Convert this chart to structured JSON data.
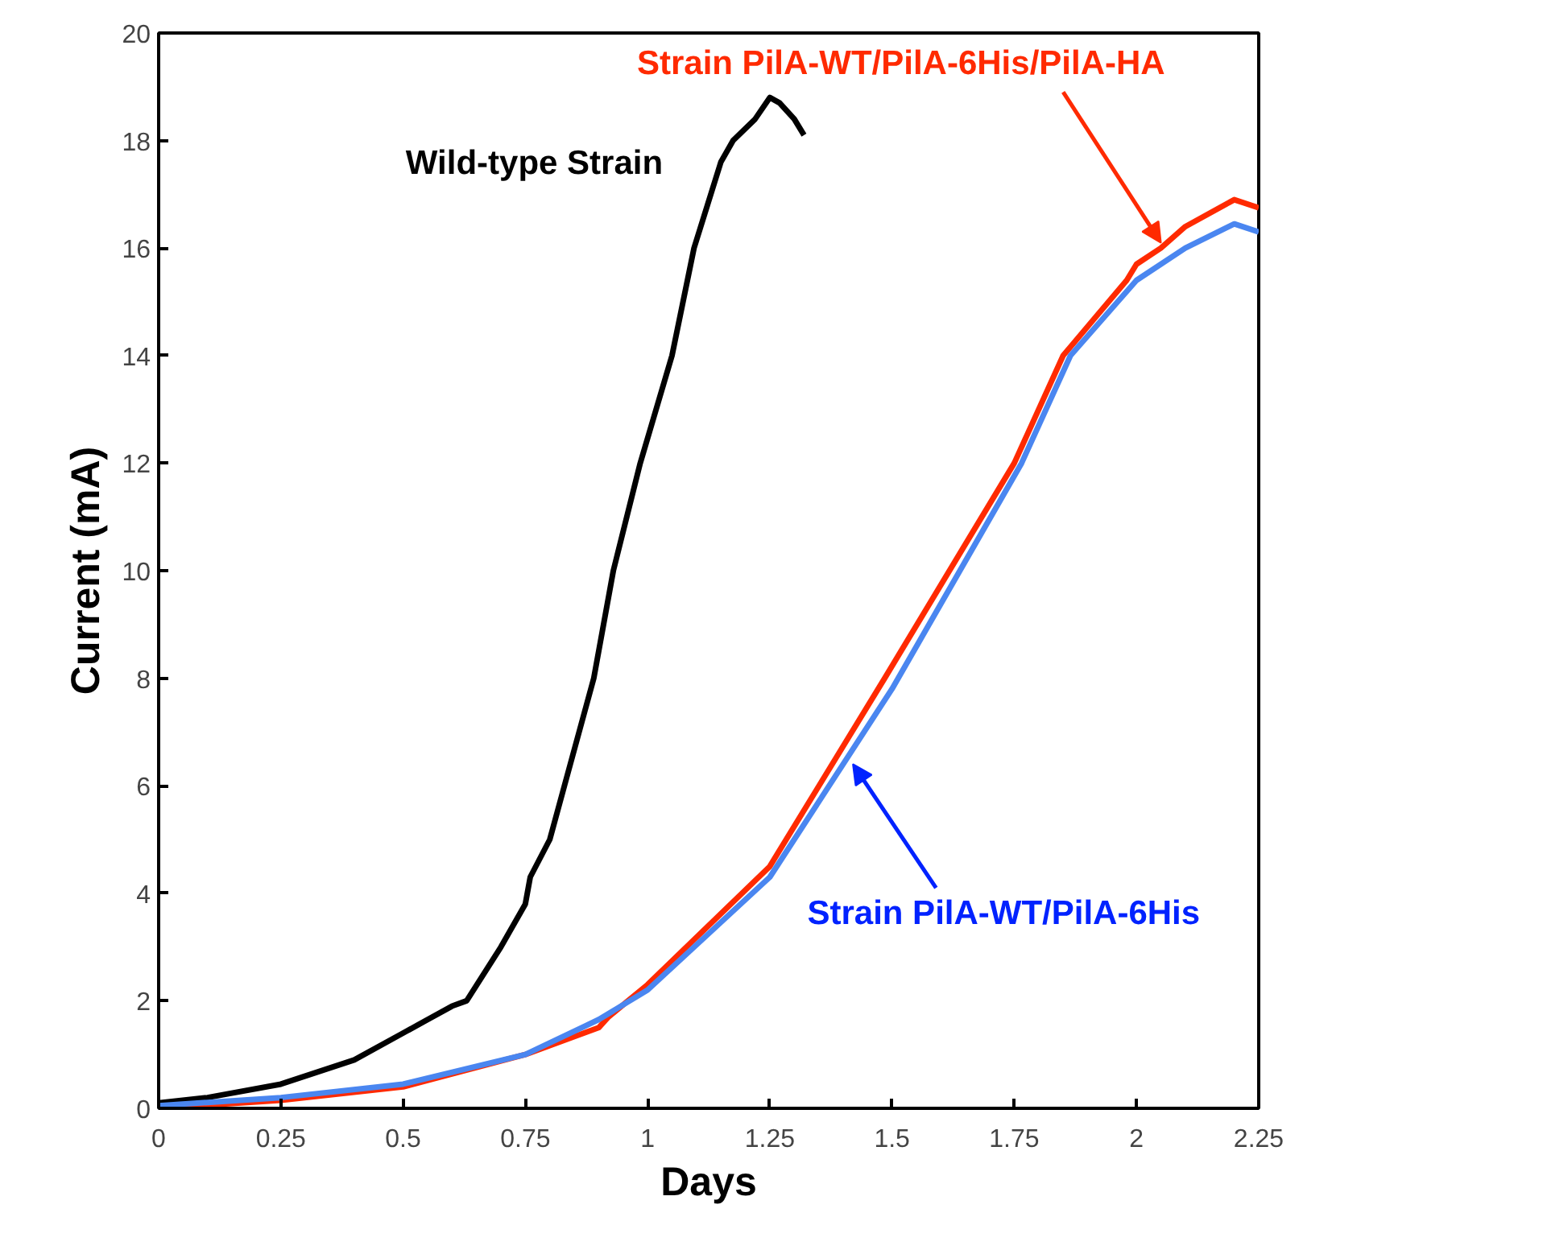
{
  "chart_data": {
    "type": "line",
    "xlabel": "Days",
    "ylabel": "Current (mA)",
    "xlim": [
      0,
      2.25
    ],
    "ylim": [
      0,
      20
    ],
    "xticks": [
      0,
      0.25,
      0.5,
      0.75,
      1,
      1.25,
      1.5,
      1.75,
      2,
      2.25
    ],
    "yticks": [
      0,
      2,
      4,
      6,
      8,
      10,
      12,
      14,
      16,
      18,
      20
    ],
    "grid": false,
    "marker": "none",
    "line_style": "solid",
    "series": [
      {
        "name": "Wild-type Strain",
        "color": "#000000",
        "x": [
          0,
          0.1,
          0.25,
          0.4,
          0.5,
          0.6,
          0.63,
          0.7,
          0.75,
          0.76,
          0.8,
          0.83,
          0.89,
          0.93,
          0.985,
          1.05,
          1.095,
          1.15,
          1.175,
          1.22,
          1.25,
          1.27,
          1.3,
          1.32
        ],
        "values": [
          0.1,
          0.2,
          0.45,
          0.9,
          1.4,
          1.9,
          2.0,
          3.0,
          3.8,
          4.3,
          5.0,
          6.0,
          8.0,
          10.0,
          12.0,
          14.0,
          16.0,
          17.6,
          18.0,
          18.4,
          18.8,
          18.7,
          18.4,
          18.1
        ]
      },
      {
        "name": "Strain PilA-WT/PilA-6His/PilA-HA",
        "color": "#ff2a00",
        "x": [
          0,
          0.25,
          0.5,
          0.75,
          0.9,
          0.92,
          1.0,
          1.25,
          1.485,
          1.75,
          1.85,
          1.98,
          2.0,
          2.05,
          2.1,
          2.2,
          2.25
        ],
        "values": [
          0,
          0.15,
          0.4,
          1.0,
          1.5,
          1.7,
          2.3,
          4.5,
          8.0,
          12.0,
          14.0,
          15.4,
          15.7,
          16.0,
          16.4,
          16.9,
          16.75
        ]
      },
      {
        "name": "Strain PilA-WT/PilA-6His",
        "color": "#4a86f0",
        "x": [
          0,
          0.25,
          0.5,
          0.75,
          0.9,
          1.0,
          1.25,
          1.5,
          1.765,
          1.865,
          2.0,
          2.1,
          2.2,
          2.25
        ],
        "values": [
          0.05,
          0.2,
          0.45,
          1.0,
          1.65,
          2.2,
          4.3,
          7.8,
          12.0,
          14.0,
          15.4,
          16.0,
          16.45,
          16.3
        ]
      }
    ]
  }
}
